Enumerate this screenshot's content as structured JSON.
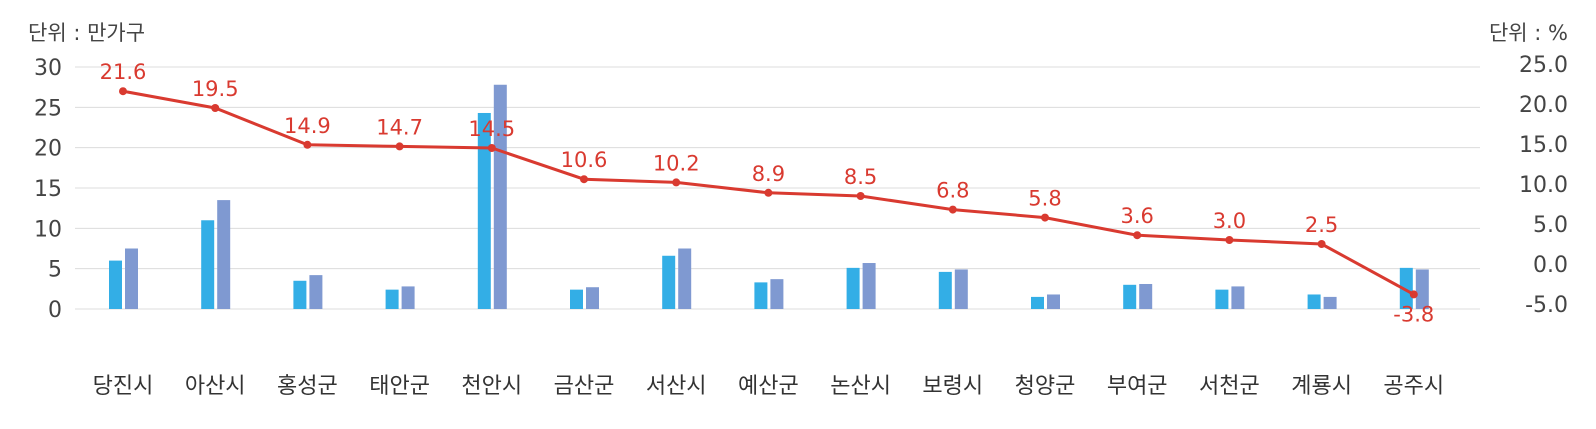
{
  "chart_data": {
    "type": "bar+line",
    "title": "",
    "left_axis_unit": "단위 : 만가구",
    "right_axis_unit": "단위 : %",
    "categories": [
      "당진시",
      "아산시",
      "홍성군",
      "태안군",
      "천안시",
      "금산군",
      "서산시",
      "예산군",
      "논산시",
      "보령시",
      "청양군",
      "부여군",
      "서천군",
      "계룡시",
      "공주시"
    ],
    "left_axis": {
      "min": 0,
      "max": 30,
      "ticks": [
        "0",
        "5",
        "10",
        "15",
        "20",
        "25",
        "30"
      ]
    },
    "right_axis": {
      "min": -5,
      "max": 25,
      "ticks": [
        "-5.0",
        "0.0",
        "5.0",
        "10.0",
        "15.0",
        "20.0",
        "25.0"
      ]
    },
    "grid": true,
    "bar_series": [
      {
        "color": "#33aee6",
        "values": [
          6.0,
          11.0,
          3.5,
          2.4,
          24.3,
          2.4,
          6.6,
          3.3,
          5.1,
          4.6,
          1.5,
          3.0,
          2.4,
          1.8,
          5.1
        ]
      },
      {
        "color": "#7f99d1",
        "values": [
          7.5,
          13.5,
          4.2,
          2.8,
          27.8,
          2.7,
          7.5,
          3.7,
          5.7,
          4.9,
          1.8,
          3.1,
          2.8,
          1.5,
          4.9
        ]
      }
    ],
    "line_series": {
      "color": "#d93a30",
      "axis": "right",
      "values": [
        21.6,
        19.5,
        14.9,
        14.7,
        14.5,
        10.6,
        10.2,
        8.9,
        8.5,
        6.8,
        5.8,
        3.6,
        3.0,
        2.5,
        -3.8
      ],
      "labels": [
        "21.6",
        "19.5",
        "14.9",
        "14.7",
        "14.5",
        "10.6",
        "10.2",
        "8.9",
        "8.5",
        "6.8",
        "5.8",
        "3.6",
        "3.0",
        "2.5",
        "-3.8"
      ]
    }
  }
}
